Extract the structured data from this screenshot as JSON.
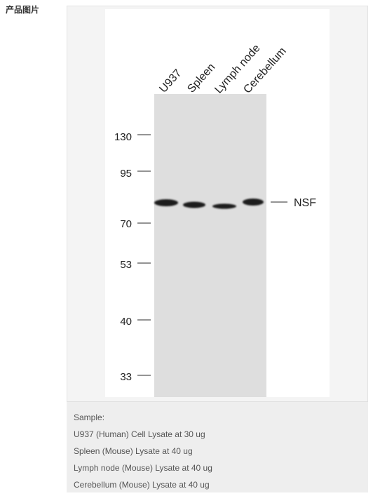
{
  "section": {
    "label": "产品图片"
  },
  "figure": {
    "lanes": [
      "U937",
      "Spleen",
      "Lymph node",
      "Cerebellum"
    ],
    "markers": [
      "130",
      "95",
      "70",
      "53",
      "40",
      "33"
    ],
    "band_label": "NSF",
    "colors": {
      "membrane": "#dedede",
      "band": "#1a1a1a",
      "marker_tick": "#555555"
    }
  },
  "caption": {
    "lines": [
      "Sample:",
      "U937 (Human) Cell Lysate at 30 ug",
      "Spleen (Mouse) Lysate at 40 ug",
      "Lymph node (Mouse) Lysate at 40 ug",
      "Cerebellum (Mouse) Lysate at 40 ug"
    ]
  }
}
